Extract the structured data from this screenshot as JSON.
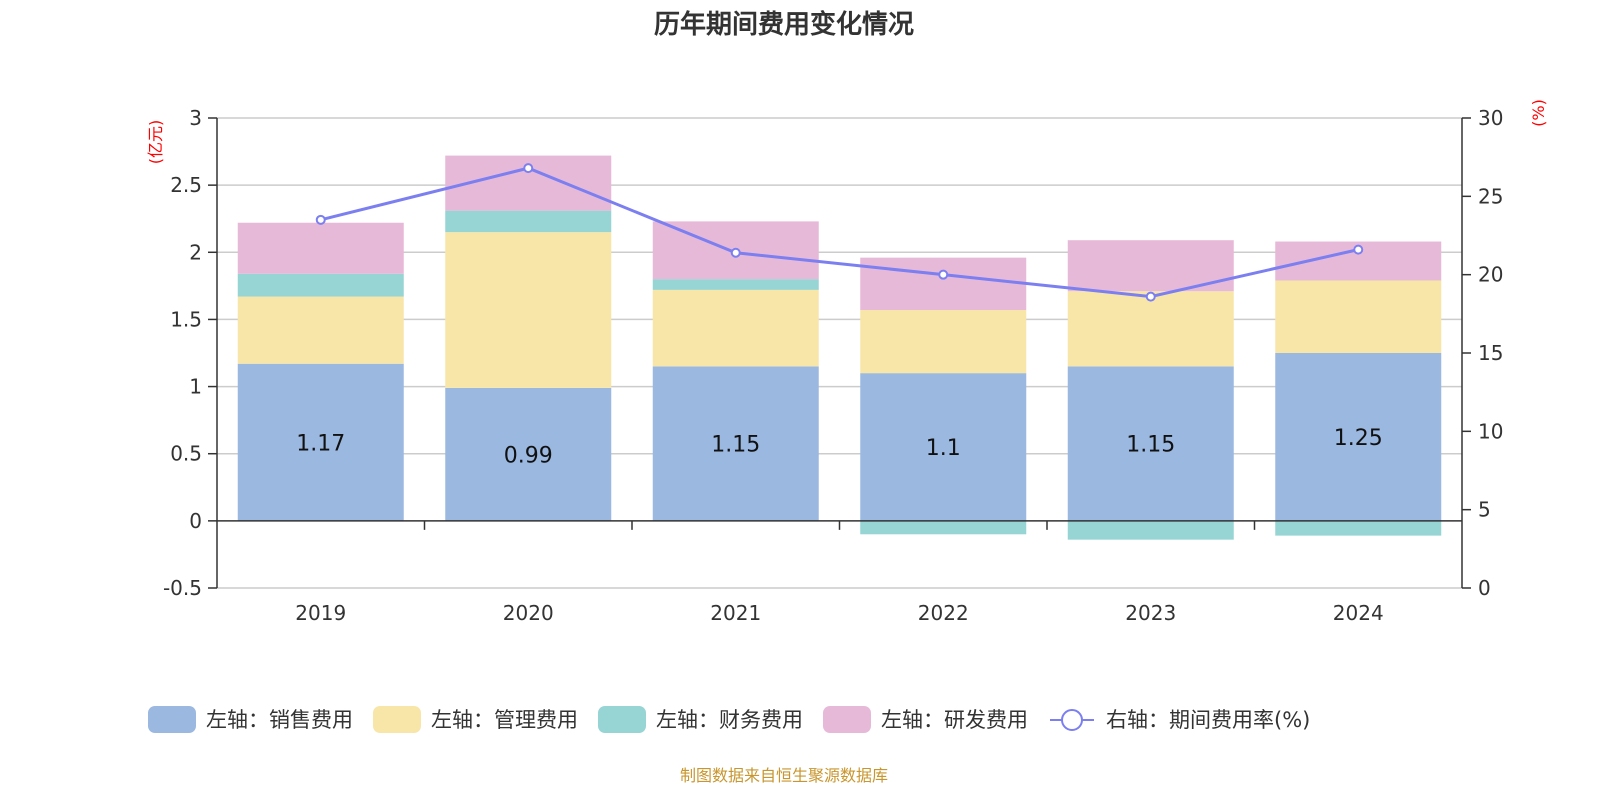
{
  "chart_data": {
    "type": "bar",
    "title": "历年期间费用变化情况",
    "categories": [
      "2019",
      "2020",
      "2021",
      "2022",
      "2023",
      "2024"
    ],
    "left_axis": {
      "label": "(亿元)",
      "ylim": [
        -0.5,
        3
      ],
      "ticks": [
        "-0.5",
        "0",
        "0.5",
        "1",
        "1.5",
        "2",
        "2.5",
        "3"
      ]
    },
    "right_axis": {
      "label": "(%)",
      "ylim": [
        0,
        30
      ],
      "ticks": [
        "0",
        "5",
        "10",
        "15",
        "20",
        "25",
        "30"
      ]
    },
    "grid": true,
    "stacked": true,
    "series": [
      {
        "name": "左轴：销售费用",
        "axis": "left",
        "type": "bar",
        "color": "#9bb8e1",
        "values": [
          1.17,
          0.99,
          1.15,
          1.1,
          1.15,
          1.25
        ],
        "labels": [
          "1.17",
          "0.99",
          "1.15",
          "1.1",
          "1.15",
          "1.25"
        ]
      },
      {
        "name": "左轴：管理费用",
        "axis": "left",
        "type": "bar",
        "color": "#f8e6a9",
        "values": [
          0.5,
          1.16,
          0.57,
          0.47,
          0.56,
          0.54
        ]
      },
      {
        "name": "左轴：财务费用",
        "axis": "left",
        "type": "bar",
        "color": "#97d4d4",
        "values": [
          0.17,
          0.16,
          0.08,
          -0.1,
          -0.14,
          -0.11
        ]
      },
      {
        "name": "左轴：研发费用",
        "axis": "left",
        "type": "bar",
        "color": "#e7b9d8",
        "values": [
          0.38,
          0.41,
          0.43,
          0.39,
          0.38,
          0.29
        ]
      },
      {
        "name": "右轴：期间费用率(%)",
        "axis": "right",
        "type": "line",
        "color": "#7b7ff0",
        "values": [
          23.5,
          26.8,
          21.4,
          20.0,
          18.6,
          21.6
        ]
      }
    ],
    "legend_position": "bottom"
  },
  "source_note": "制图数据来自恒生聚源数据库"
}
